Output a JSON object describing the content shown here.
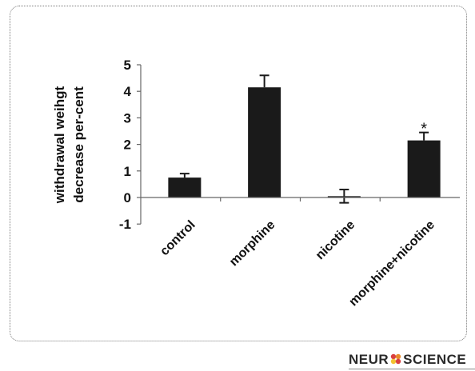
{
  "chart_data": {
    "type": "bar",
    "categories": [
      "control",
      "morphine",
      "nicotine",
      "morphine+nicotine"
    ],
    "values": [
      0.75,
      4.15,
      0.05,
      2.15
    ],
    "error": [
      0.15,
      0.45,
      0.25,
      0.3
    ],
    "annotations": [
      "",
      "",
      "",
      "*"
    ],
    "ylabel_lines": [
      "withdrawal weihgt",
      "decrease  per-cent"
    ],
    "ylim": [
      -1,
      5
    ],
    "yticks": [
      "-1",
      "0",
      "1",
      "2",
      "3",
      "4",
      "5"
    ],
    "bar_color": "#1a1a1a",
    "grid": false
  },
  "logo": {
    "before": "NEUR",
    "after": "SCIENCE",
    "accent_colors": [
      "#d94040",
      "#e88a2a",
      "#f2c230",
      "#d94040"
    ]
  }
}
